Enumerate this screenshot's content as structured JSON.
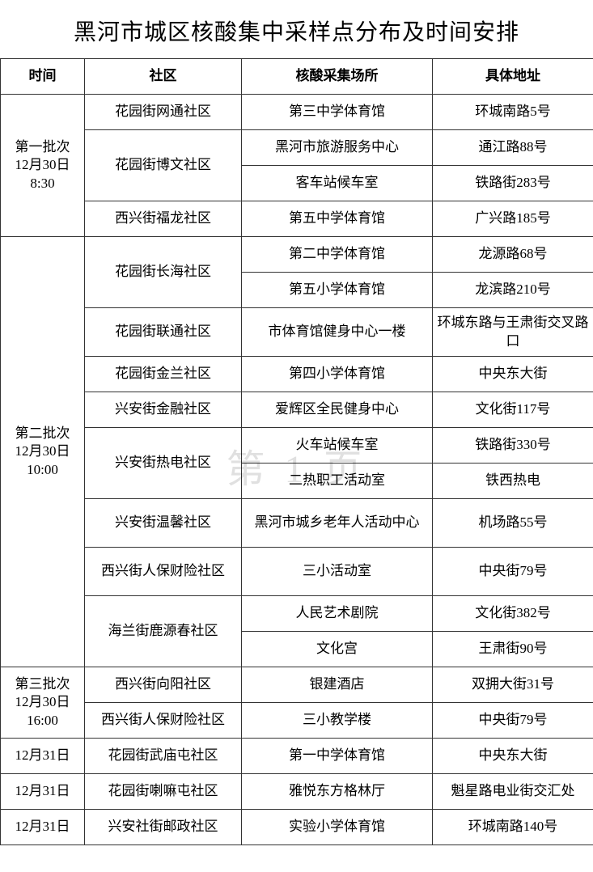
{
  "title": "黑河市城区核酸集中采样点分布及时间安排",
  "watermark": "第 1 页",
  "headers": {
    "time": "时间",
    "community": "社区",
    "location": "核酸采集场所",
    "address": "具体地址"
  },
  "batches": [
    {
      "time": "第一批次\n12月30日\n8:30",
      "rows": [
        {
          "community": "花园街网通社区",
          "community_span": 1,
          "location": "第三中学体育馆",
          "address": "环城南路5号"
        },
        {
          "community": "花园街博文社区",
          "community_span": 2,
          "location": "黑河市旅游服务中心",
          "address": "通江路88号"
        },
        {
          "community": null,
          "location": "客车站候车室",
          "address": "铁路街283号"
        },
        {
          "community": "西兴街福龙社区",
          "community_span": 1,
          "location": "第五中学体育馆",
          "address": "广兴路185号"
        }
      ]
    },
    {
      "time": "第二批次\n12月30日\n10:00",
      "rows": [
        {
          "community": "花园街长海社区",
          "community_span": 2,
          "location": "第二中学体育馆",
          "address": "龙源路68号"
        },
        {
          "community": null,
          "location": "第五小学体育馆",
          "address": "龙滨路210号"
        },
        {
          "community": "花园街联通社区",
          "community_span": 1,
          "location": "市体育馆健身中心一楼",
          "address": "环城东路与王肃街交叉路口",
          "tall": true
        },
        {
          "community": "花园街金兰社区",
          "community_span": 1,
          "location": "第四小学体育馆",
          "address": "中央东大街"
        },
        {
          "community": "兴安街金融社区",
          "community_span": 1,
          "location": "爱辉区全民健身中心",
          "address": "文化街117号"
        },
        {
          "community": "兴安街热电社区",
          "community_span": 2,
          "location": "火车站候车室",
          "address": "铁路街330号"
        },
        {
          "community": null,
          "location": "二热职工活动室",
          "address": "铁西热电"
        },
        {
          "community": "兴安街温馨社区",
          "community_span": 1,
          "location": "黑河市城乡老年人活动中心",
          "address": "机场路55号",
          "tall": true
        },
        {
          "community": "西兴街人保财险社区",
          "community_span": 1,
          "location": "三小活动室",
          "address": "中央街79号",
          "tall": true
        },
        {
          "community": "海兰街鹿源春社区",
          "community_span": 2,
          "location": "人民艺术剧院",
          "address": "文化街382号"
        },
        {
          "community": null,
          "location": "文化宫",
          "address": "王肃街90号"
        }
      ]
    },
    {
      "time": "第三批次\n12月30日\n16:00",
      "rows": [
        {
          "community": "西兴街向阳社区",
          "community_span": 1,
          "location": "银建酒店",
          "address": "双拥大街31号"
        },
        {
          "community": "西兴街人保财险社区",
          "community_span": 1,
          "location": "三小教学楼",
          "address": "中央街79号"
        }
      ]
    },
    {
      "time": "12月31日",
      "rows": [
        {
          "community": "花园街武庙屯社区",
          "community_span": 1,
          "location": "第一中学体育馆",
          "address": "中央东大街"
        }
      ]
    },
    {
      "time": "12月31日",
      "rows": [
        {
          "community": "花园街喇嘛屯社区",
          "community_span": 1,
          "location": "雅悦东方格林厅",
          "address": "魁星路电业街交汇处"
        }
      ]
    },
    {
      "time": "12月31日",
      "rows": [
        {
          "community": "兴安社街邮政社区",
          "community_span": 1,
          "location": "实验小学体育馆",
          "address": "环城南路140号"
        }
      ]
    }
  ]
}
